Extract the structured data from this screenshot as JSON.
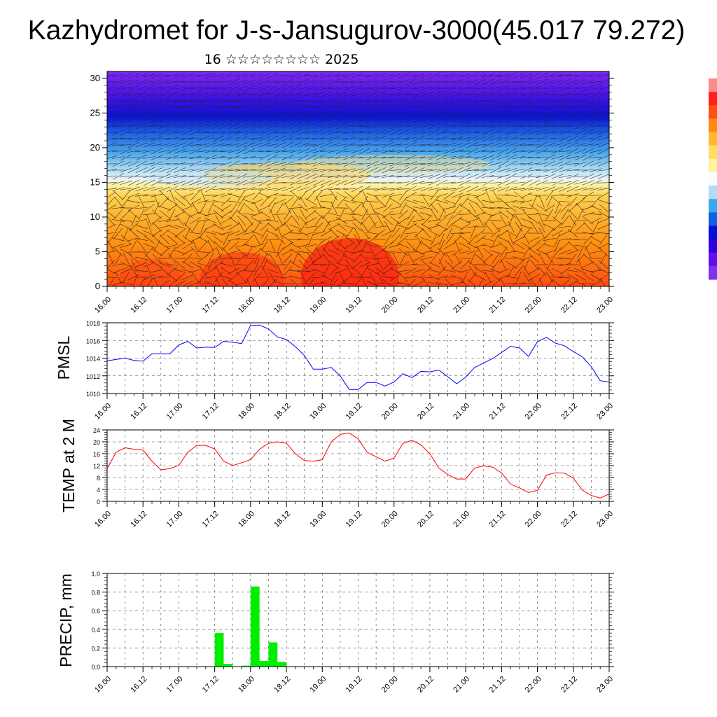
{
  "header": {
    "title": "Kazhydromet for J-s-Jansugurov-3000(45.017 79.272)",
    "subtitle": "16 ☆☆☆☆☆☆☆☆ 2025"
  },
  "time_ticks": [
    "16.00",
    "16.12",
    "17.00",
    "17.12",
    "18.00",
    "18.12",
    "19.00",
    "19.12",
    "20.00",
    "20.12",
    "21.00",
    "21.12",
    "22.00",
    "22.12",
    "23.00"
  ],
  "colorbar": {
    "colors": [
      "#ff8a8a",
      "#ff2020",
      "#ff5010",
      "#ff8a10",
      "#ffb830",
      "#ffe060",
      "#fff2a0",
      "#f8fcff",
      "#b0ddf4",
      "#38a8f0",
      "#1060e0",
      "#0010d8",
      "#3000e0",
      "#6010f0",
      "#8030f0"
    ]
  },
  "chart_data": [
    {
      "type": "heatmap",
      "name": "cross-section",
      "ylim": [
        0,
        31
      ],
      "yticks": [
        0,
        5,
        10,
        15,
        20,
        25,
        30
      ],
      "xlim": [
        0,
        168
      ],
      "xticks": [
        "16.00",
        "16.12",
        "17.00",
        "17.12",
        "18.00",
        "18.12",
        "19.00",
        "19.12",
        "20.00",
        "20.12",
        "21.00",
        "21.12",
        "22.00",
        "22.12",
        "23.00"
      ],
      "grid": false
    },
    {
      "type": "line",
      "name": "PMSL",
      "ylabel": "PMSL",
      "color": "#0000ff",
      "ylim": [
        1010,
        1018
      ],
      "yticks": [
        1010,
        1012,
        1014,
        1016,
        1018
      ],
      "xlim": [
        0,
        168
      ],
      "x": [
        0,
        3,
        6,
        9,
        12,
        15,
        18,
        21,
        24,
        27,
        30,
        33,
        36,
        39,
        42,
        45,
        48,
        51,
        54,
        57,
        60,
        63,
        66,
        69,
        72,
        75,
        78,
        81,
        84,
        87,
        90,
        93,
        96,
        99,
        102,
        105,
        108,
        111,
        114,
        117,
        120,
        123,
        126,
        129,
        132,
        135,
        138,
        141,
        144,
        147,
        150,
        153,
        156,
        159,
        162,
        165,
        168
      ],
      "y": [
        1013.7,
        1013.85,
        1014.0,
        1013.75,
        1013.65,
        1014.5,
        1014.5,
        1014.5,
        1015.5,
        1015.9,
        1015.15,
        1015.25,
        1015.2,
        1015.9,
        1015.8,
        1015.65,
        1017.7,
        1017.75,
        1017.3,
        1016.4,
        1016.1,
        1015.3,
        1014.3,
        1012.75,
        1012.75,
        1012.95,
        1012.0,
        1010.45,
        1010.45,
        1011.25,
        1011.25,
        1010.85,
        1011.3,
        1012.25,
        1011.8,
        1012.5,
        1012.45,
        1012.65,
        1011.9,
        1011.1,
        1011.85,
        1012.95,
        1013.45,
        1013.95,
        1014.65,
        1015.35,
        1015.15,
        1014.2,
        1015.85,
        1016.35,
        1015.7,
        1015.4,
        1014.75,
        1014.15,
        1013.05,
        1011.45,
        1011.3
      ],
      "grid": true
    },
    {
      "type": "line",
      "name": "TEMP",
      "ylabel": "TEMP at 2 M",
      "color": "#ff0000",
      "ylim": [
        0,
        24
      ],
      "yticks": [
        0,
        4,
        8,
        12,
        16,
        20,
        24
      ],
      "xlim": [
        0,
        168
      ],
      "x": [
        0,
        3,
        6,
        9,
        12,
        15,
        18,
        21,
        24,
        27,
        30,
        33,
        36,
        39,
        42,
        45,
        48,
        51,
        54,
        57,
        60,
        63,
        66,
        69,
        72,
        75,
        78,
        81,
        84,
        87,
        90,
        93,
        96,
        99,
        102,
        105,
        108,
        111,
        114,
        117,
        120,
        123,
        126,
        129,
        132,
        135,
        138,
        141,
        144,
        147,
        150,
        153,
        156,
        159,
        162,
        165,
        168
      ],
      "y": [
        11.0,
        16.5,
        18.0,
        17.5,
        17.2,
        13.5,
        10.6,
        11.0,
        12.1,
        16.5,
        18.8,
        18.8,
        17.6,
        13.5,
        12.0,
        13.0,
        14.0,
        17.5,
        19.5,
        20.0,
        19.5,
        16.0,
        13.7,
        13.5,
        14.0,
        20.0,
        22.5,
        23.0,
        21.0,
        16.5,
        15.0,
        13.5,
        14.5,
        19.5,
        20.5,
        19.0,
        16.0,
        11.2,
        9.0,
        7.5,
        7.5,
        11.2,
        11.9,
        11.5,
        9.5,
        5.8,
        4.5,
        3.0,
        3.7,
        8.8,
        9.6,
        9.5,
        7.8,
        3.8,
        2.0,
        1.1,
        2.5
      ],
      "grid": true
    },
    {
      "type": "bar",
      "name": "PRECIP",
      "ylabel": "PRECIP, mm",
      "color": "#00ee00",
      "ylim": [
        0,
        1.0
      ],
      "yticks": [
        "0.0",
        "0.2",
        "0.4",
        "0.6",
        "0.8",
        "1.0"
      ],
      "xlim": [
        0,
        168
      ],
      "bar_width": 3,
      "x": [
        36,
        39,
        45,
        48,
        51,
        54,
        57
      ],
      "values": [
        0.36,
        0.03,
        0.01,
        0.86,
        0.06,
        0.26,
        0.05
      ],
      "grid": true
    }
  ]
}
